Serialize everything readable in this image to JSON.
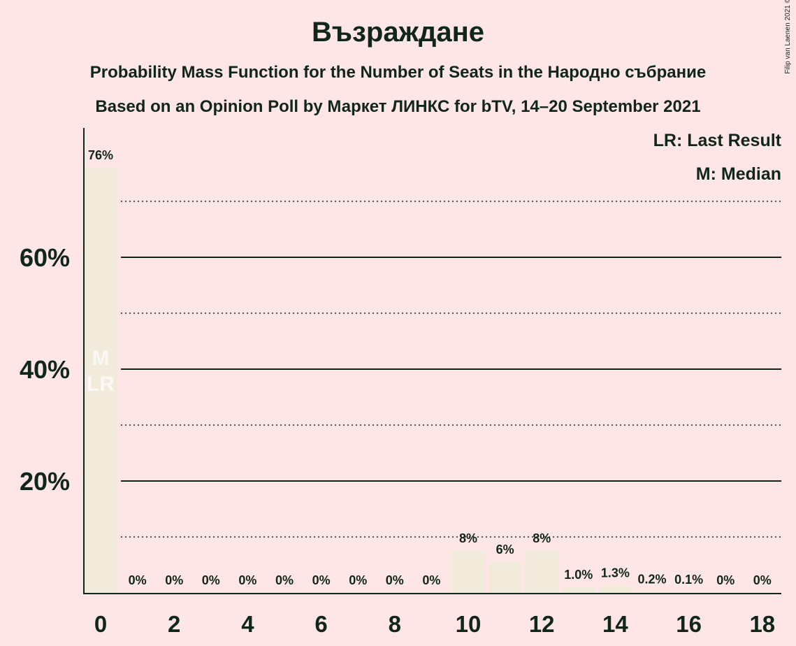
{
  "title": "Възраждане",
  "subtitle": "Probability Mass Function for the Number of Seats in the Народно събрание",
  "subtitle2": "Based on an Opinion Poll by Маркет ЛИНКС for bTV, 14–20 September 2021",
  "copyright": "© 2021 Filip van Laenen",
  "colors": {
    "background": "#ffe6e6",
    "bar": "#f2eadb",
    "text": "#10261a"
  },
  "chart_data": {
    "type": "bar",
    "title": "Възраждане",
    "xlabel": "",
    "ylabel": "",
    "x": [
      0,
      1,
      2,
      3,
      4,
      5,
      6,
      7,
      8,
      9,
      10,
      11,
      12,
      13,
      14,
      15,
      16,
      17,
      18
    ],
    "values": [
      76,
      0,
      0,
      0,
      0,
      0,
      0,
      0,
      0,
      0,
      7.5,
      5.5,
      7.5,
      1.0,
      1.3,
      0.2,
      0.1,
      0,
      0
    ],
    "value_labels": [
      "76%",
      "0%",
      "0%",
      "0%",
      "0%",
      "0%",
      "0%",
      "0%",
      "0%",
      "0%",
      "8%",
      "6%",
      "8%",
      "1.0%",
      "1.3%",
      "0.2%",
      "0.1%",
      "0%",
      "0%"
    ],
    "x_tick_labels": [
      "0",
      "2",
      "4",
      "6",
      "8",
      "10",
      "12",
      "14",
      "16",
      "18"
    ],
    "x_ticks": [
      0,
      2,
      4,
      6,
      8,
      10,
      12,
      14,
      16,
      18
    ],
    "y_tick_labels": [
      "20%",
      "40%",
      "60%"
    ],
    "y_ticks": [
      20,
      40,
      60
    ],
    "y_solid_gridlines": [
      20,
      40,
      60
    ],
    "y_dotted_gridlines": [
      10,
      30,
      50,
      70
    ],
    "ylim": [
      0,
      83
    ],
    "xlim": [
      -0.5,
      18.5
    ],
    "median": 0,
    "last_result": 0,
    "median_mark": "M",
    "last_result_mark": "LR",
    "legend": [
      "LR: Last Result",
      "M: Median"
    ],
    "legend_position": "top-right"
  }
}
